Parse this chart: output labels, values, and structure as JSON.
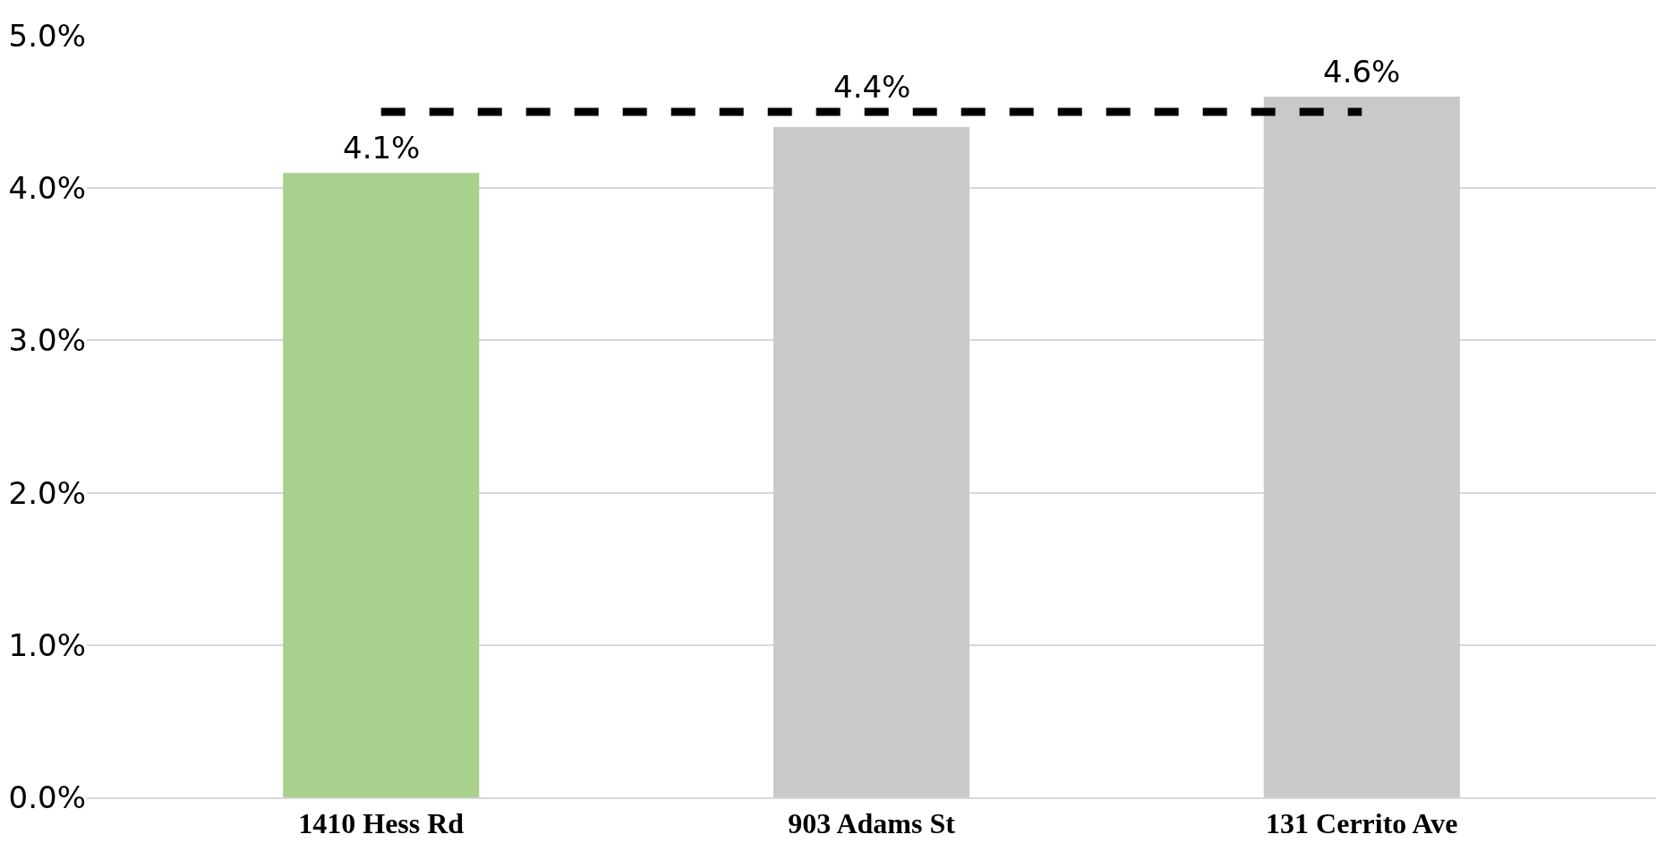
{
  "chart_data": {
    "type": "bar",
    "categories": [
      "1410 Hess Rd",
      "903 Adams St",
      "131 Cerrito Ave"
    ],
    "values": [
      4.1,
      4.4,
      4.6
    ],
    "colors": [
      "#a9d18e",
      "#c9c9c9",
      "#c9c9c9"
    ],
    "value_labels": [
      "4.1%",
      "4.4%",
      "4.6%"
    ],
    "ylim": [
      0,
      5
    ],
    "yticks": [
      {
        "value": 0,
        "label": "0.0%"
      },
      {
        "value": 1,
        "label": "1.0%"
      },
      {
        "value": 2,
        "label": "2.0%"
      },
      {
        "value": 3,
        "label": "3.0%"
      },
      {
        "value": 4,
        "label": "4.0%"
      },
      {
        "value": 5,
        "label": "5.0%"
      }
    ],
    "grid": "y",
    "ref_lines": [
      {
        "axis": "y",
        "value": 4.5,
        "label": null,
        "color": "#000000",
        "line_style": "dashed"
      }
    ]
  }
}
